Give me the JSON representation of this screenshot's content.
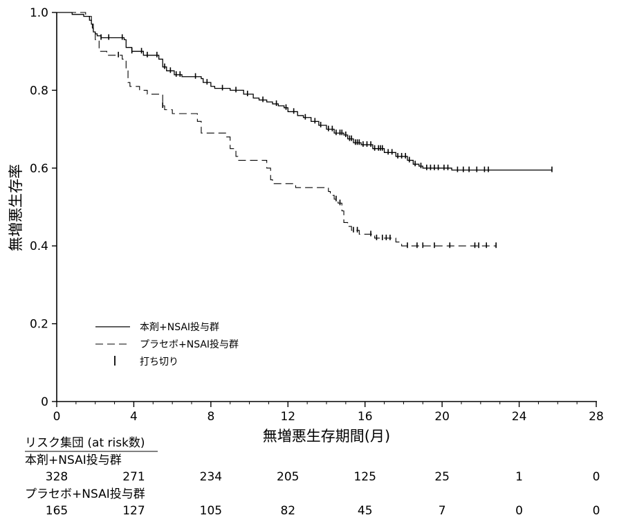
{
  "chart_data": {
    "type": "line",
    "title": "",
    "xlabel": "無増悪生存期間(月)",
    "ylabel": "無増悪生存率",
    "xlim": [
      0,
      28
    ],
    "ylim": [
      0,
      1.0
    ],
    "x_ticks": [
      0,
      4,
      8,
      12,
      16,
      20,
      24,
      28
    ],
    "y_ticks": [
      0,
      0.2,
      0.4,
      0.6,
      0.8,
      1.0
    ],
    "x_tick_labels": [
      "0",
      "4",
      "8",
      "12",
      "16",
      "20",
      "24",
      "28"
    ],
    "y_tick_labels": [
      "0",
      "0.2",
      "0.4",
      "0.6",
      "0.8",
      "1.0"
    ],
    "grid": false,
    "legend_position": "bottom-left",
    "legend": {
      "entries": [
        {
          "label": "本剤+NSAI投与群",
          "style": "solid"
        },
        {
          "label": "プラセボ+NSAI投与群",
          "style": "dashed"
        },
        {
          "label": "打ち切り",
          "style": "censor-mark"
        }
      ]
    },
    "series": [
      {
        "style": "solid",
        "steps": [
          [
            0,
            1.0
          ],
          [
            0.8,
            0.995
          ],
          [
            1.4,
            0.99
          ],
          [
            1.7,
            0.98
          ],
          [
            1.8,
            0.97
          ],
          [
            1.85,
            0.96
          ],
          [
            1.9,
            0.95
          ],
          [
            2.0,
            0.945
          ],
          [
            2.1,
            0.94
          ],
          [
            2.3,
            0.935
          ],
          [
            3.5,
            0.93
          ],
          [
            3.6,
            0.91
          ],
          [
            3.9,
            0.9
          ],
          [
            4.5,
            0.89
          ],
          [
            5.3,
            0.88
          ],
          [
            5.5,
            0.86
          ],
          [
            5.7,
            0.85
          ],
          [
            6.1,
            0.84
          ],
          [
            6.5,
            0.835
          ],
          [
            7.5,
            0.83
          ],
          [
            7.6,
            0.82
          ],
          [
            8.0,
            0.81
          ],
          [
            8.2,
            0.805
          ],
          [
            9.0,
            0.8
          ],
          [
            9.7,
            0.79
          ],
          [
            10.2,
            0.78
          ],
          [
            10.5,
            0.775
          ],
          [
            10.9,
            0.77
          ],
          [
            11.2,
            0.765
          ],
          [
            11.5,
            0.76
          ],
          [
            11.8,
            0.755
          ],
          [
            12.0,
            0.745
          ],
          [
            12.5,
            0.735
          ],
          [
            12.8,
            0.73
          ],
          [
            13.2,
            0.72
          ],
          [
            13.6,
            0.71
          ],
          [
            14.0,
            0.7
          ],
          [
            14.4,
            0.69
          ],
          [
            14.9,
            0.685
          ],
          [
            15.1,
            0.675
          ],
          [
            15.4,
            0.665
          ],
          [
            15.8,
            0.66
          ],
          [
            16.4,
            0.65
          ],
          [
            17.0,
            0.64
          ],
          [
            17.6,
            0.63
          ],
          [
            18.2,
            0.62
          ],
          [
            18.5,
            0.61
          ],
          [
            18.8,
            0.605
          ],
          [
            19.0,
            0.6
          ],
          [
            20.5,
            0.595
          ]
        ],
        "x_end": 25.7,
        "censor_times": [
          2.3,
          2.7,
          3.4,
          3.9,
          4.4,
          4.7,
          5.2,
          5.6,
          5.9,
          6.2,
          6.4,
          7.2,
          7.8,
          8.6,
          9.3,
          9.9,
          10.7,
          11.4,
          11.9,
          12.3,
          12.9,
          13.4,
          13.7,
          14.1,
          14.3,
          14.5,
          14.7,
          14.8,
          15.0,
          15.2,
          15.3,
          15.5,
          15.6,
          15.7,
          15.9,
          16.1,
          16.3,
          16.5,
          16.7,
          16.8,
          16.9,
          17.2,
          17.4,
          17.7,
          17.9,
          18.1,
          18.3,
          18.6,
          18.9,
          19.2,
          19.4,
          19.6,
          19.8,
          20.1,
          20.3,
          20.8,
          21.1,
          21.4,
          21.8,
          22.2,
          22.4,
          25.7
        ]
      },
      {
        "style": "dashed",
        "steps": [
          [
            0,
            1.0
          ],
          [
            1.5,
            0.99
          ],
          [
            1.8,
            0.97
          ],
          [
            1.9,
            0.95
          ],
          [
            2.0,
            0.93
          ],
          [
            2.2,
            0.9
          ],
          [
            2.6,
            0.89
          ],
          [
            3.4,
            0.88
          ],
          [
            3.6,
            0.85
          ],
          [
            3.7,
            0.82
          ],
          [
            3.8,
            0.81
          ],
          [
            4.3,
            0.8
          ],
          [
            4.7,
            0.79
          ],
          [
            5.5,
            0.76
          ],
          [
            5.6,
            0.75
          ],
          [
            6.0,
            0.74
          ],
          [
            7.3,
            0.72
          ],
          [
            7.5,
            0.69
          ],
          [
            8.8,
            0.68
          ],
          [
            9.0,
            0.65
          ],
          [
            9.3,
            0.63
          ],
          [
            9.4,
            0.62
          ],
          [
            10.9,
            0.6
          ],
          [
            11.1,
            0.57
          ],
          [
            11.2,
            0.56
          ],
          [
            12.4,
            0.55
          ],
          [
            14.1,
            0.54
          ],
          [
            14.2,
            0.53
          ],
          [
            14.4,
            0.52
          ],
          [
            14.6,
            0.51
          ],
          [
            14.8,
            0.49
          ],
          [
            14.9,
            0.46
          ],
          [
            15.1,
            0.45
          ],
          [
            15.3,
            0.44
          ],
          [
            15.7,
            0.43
          ],
          [
            16.5,
            0.42
          ],
          [
            17.6,
            0.41
          ],
          [
            17.9,
            0.4
          ]
        ],
        "x_end": 22.8,
        "censor_times": [
          3.2,
          5.5,
          14.5,
          14.7,
          15.4,
          15.6,
          16.3,
          16.6,
          16.9,
          17.1,
          17.3,
          18.2,
          18.7,
          19.0,
          19.6,
          20.4,
          21.7,
          21.9,
          22.3,
          22.8
        ]
      }
    ],
    "risk_table": {
      "header": "リスク集団 (at risk数)",
      "time_points": [
        0,
        4,
        8,
        12,
        16,
        20,
        24,
        28
      ],
      "groups": [
        {
          "label": "本剤+NSAI投与群",
          "values": [
            "328",
            "271",
            "234",
            "205",
            "125",
            "25",
            "1",
            "0"
          ]
        },
        {
          "label": "プラセボ+NSAI投与群",
          "values": [
            "165",
            "127",
            "105",
            "82",
            "45",
            "7",
            "0",
            "0"
          ]
        }
      ]
    }
  }
}
